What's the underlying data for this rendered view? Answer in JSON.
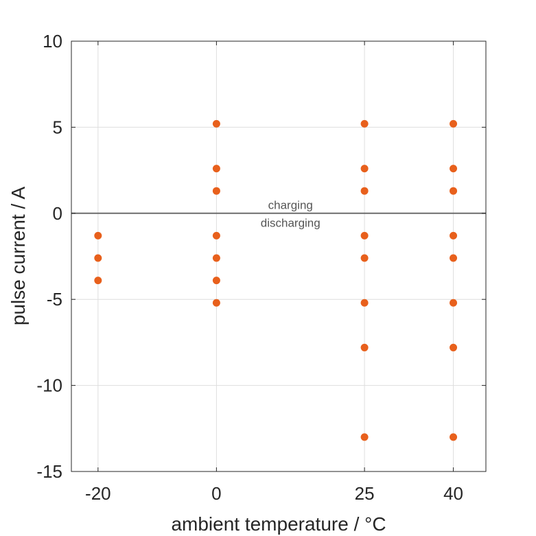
{
  "chart_data": {
    "type": "scatter",
    "title": "",
    "xlabel": "ambient temperature / °C",
    "ylabel": "pulse current / A",
    "x_ticks": [
      -20,
      0,
      25,
      40
    ],
    "x_tick_labels": [
      "-20",
      "0",
      "25",
      "40"
    ],
    "y_ticks": [
      -15,
      -10,
      -5,
      0,
      5,
      10
    ],
    "y_tick_labels": [
      "-15",
      "-10",
      "-5",
      "0",
      "5",
      "10"
    ],
    "xlim": [
      -24.5,
      45.5
    ],
    "ylim": [
      -15,
      10
    ],
    "grid": true,
    "reference_line": {
      "y": 0,
      "color": "#6b6b6b"
    },
    "annotations": [
      {
        "text": "charging",
        "x": 12.5,
        "y": 0.5
      },
      {
        "text": "discharging",
        "x": 12.5,
        "y": -0.55
      }
    ],
    "series": [
      {
        "color": "#e8601c",
        "points": [
          {
            "x": -20,
            "y": -1.3
          },
          {
            "x": -20,
            "y": -2.6
          },
          {
            "x": -20,
            "y": -3.9
          },
          {
            "x": 0,
            "y": 5.2
          },
          {
            "x": 0,
            "y": 2.6
          },
          {
            "x": 0,
            "y": 1.3
          },
          {
            "x": 0,
            "y": -1.3
          },
          {
            "x": 0,
            "y": -2.6
          },
          {
            "x": 0,
            "y": -3.9
          },
          {
            "x": 0,
            "y": -5.2
          },
          {
            "x": 25,
            "y": 5.2
          },
          {
            "x": 25,
            "y": 2.6
          },
          {
            "x": 25,
            "y": 1.3
          },
          {
            "x": 25,
            "y": -1.3
          },
          {
            "x": 25,
            "y": -2.6
          },
          {
            "x": 25,
            "y": -5.2
          },
          {
            "x": 25,
            "y": -7.8
          },
          {
            "x": 25,
            "y": -13.0
          },
          {
            "x": 40,
            "y": 5.2
          },
          {
            "x": 40,
            "y": 2.6
          },
          {
            "x": 40,
            "y": 1.3
          },
          {
            "x": 40,
            "y": -1.3
          },
          {
            "x": 40,
            "y": -2.6
          },
          {
            "x": 40,
            "y": -5.2
          },
          {
            "x": 40,
            "y": -7.8
          },
          {
            "x": 40,
            "y": -13.0
          }
        ]
      }
    ]
  }
}
